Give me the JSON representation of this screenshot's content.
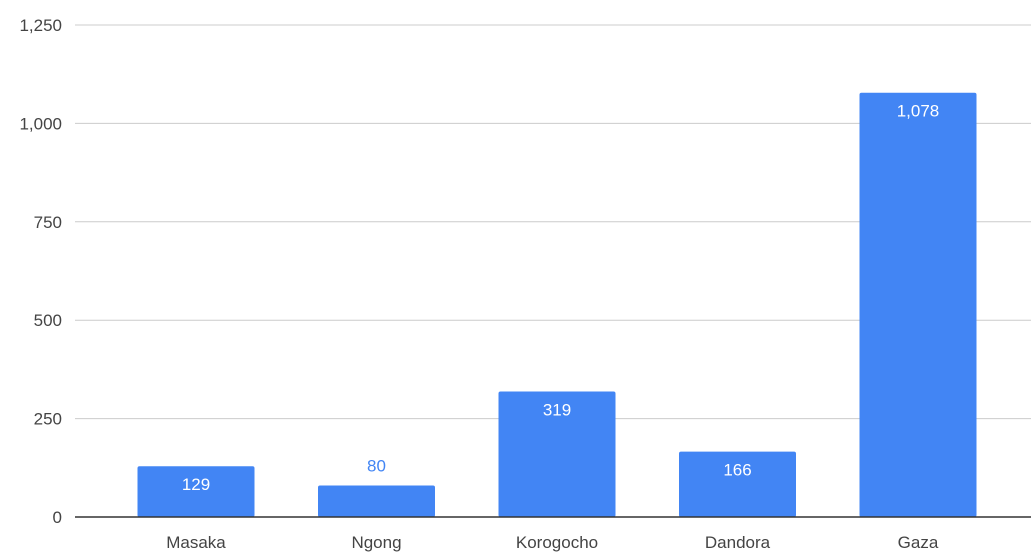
{
  "chart_data": {
    "type": "bar",
    "title": "",
    "xlabel": "",
    "ylabel": "",
    "categories": [
      "Masaka",
      "Ngong",
      "Korogocho",
      "Dandora",
      "Gaza"
    ],
    "values": [
      129,
      80,
      319,
      166,
      1078
    ],
    "value_labels": [
      "129",
      "80",
      "319",
      "166",
      "1,078"
    ],
    "ylim": [
      0,
      1250
    ],
    "yticks": [
      0,
      250,
      500,
      750,
      1000,
      1250
    ],
    "ytick_labels": [
      "0",
      "250",
      "500",
      "750",
      "1,000",
      "1,250"
    ],
    "grid": true,
    "legend": "none",
    "colors": {
      "bar": "#4285f4",
      "label_inside": "#ffffff",
      "label_outside": "#4285f4",
      "gridline": "#cccccc",
      "baseline": "#333333",
      "tick_text": "#444444"
    }
  }
}
